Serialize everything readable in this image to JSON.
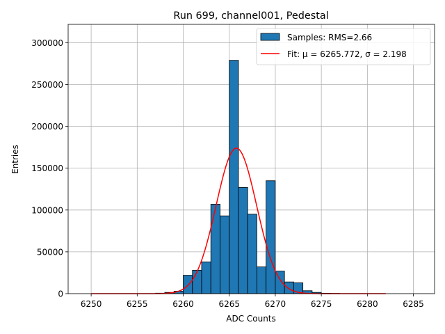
{
  "chart_data": {
    "type": "bar",
    "title": "Run 699, channel001, Pedestal",
    "xlabel": "ADC Counts",
    "ylabel": "Entries",
    "xlim": [
      6247.5,
      6287.3
    ],
    "ylim": [
      0,
      322000
    ],
    "xticks": [
      6250,
      6255,
      6260,
      6265,
      6270,
      6275,
      6280,
      6285
    ],
    "yticks": [
      0,
      50000,
      100000,
      150000,
      200000,
      250000,
      300000
    ],
    "grid": true,
    "legend": "top-right",
    "bar_width": 1,
    "bins": [
      {
        "x": 6257,
        "value": 600
      },
      {
        "x": 6258,
        "value": 1500
      },
      {
        "x": 6259,
        "value": 3000
      },
      {
        "x": 6260,
        "value": 22000
      },
      {
        "x": 6261,
        "value": 28000
      },
      {
        "x": 6262,
        "value": 38000
      },
      {
        "x": 6263,
        "value": 107000
      },
      {
        "x": 6264,
        "value": 93000
      },
      {
        "x": 6265,
        "value": 279000
      },
      {
        "x": 6266,
        "value": 127000
      },
      {
        "x": 6267,
        "value": 95000
      },
      {
        "x": 6268,
        "value": 32000
      },
      {
        "x": 6269,
        "value": 135000
      },
      {
        "x": 6270,
        "value": 27000
      },
      {
        "x": 6271,
        "value": 14000
      },
      {
        "x": 6272,
        "value": 13000
      },
      {
        "x": 6273,
        "value": 3500
      },
      {
        "x": 6274,
        "value": 1500
      },
      {
        "x": 6275,
        "value": 500
      },
      {
        "x": 6276,
        "value": 300
      }
    ],
    "fit": {
      "type": "gaussian",
      "mu": 6265.772,
      "sigma": 2.198,
      "amplitude": 174000,
      "x_range": [
        6250,
        6282
      ]
    },
    "series": [
      {
        "name": "Samples: RMS=2.66",
        "color": "#1f77b4"
      },
      {
        "name": "Fit: μ = 6265.772, σ = 2.198",
        "color": "#ff0000"
      }
    ]
  }
}
